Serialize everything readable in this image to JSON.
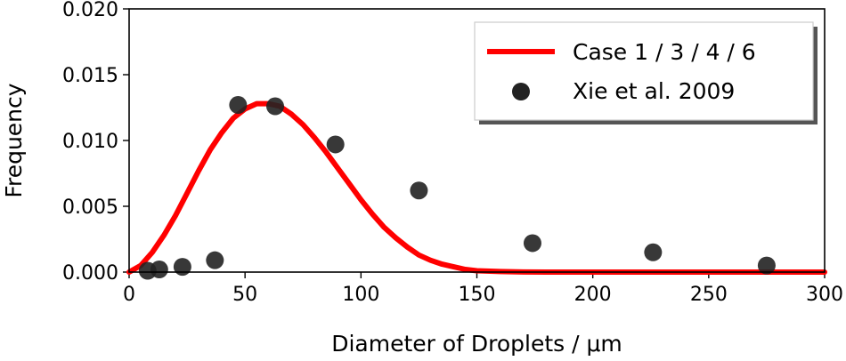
{
  "chart_data": {
    "type": "scatter",
    "title": "",
    "xlabel": "Diameter of Droplets / μm",
    "ylabel": "Frequency",
    "xlim": [
      0,
      300
    ],
    "ylim": [
      0,
      0.02
    ],
    "x_ticks": [
      "0",
      "50",
      "100",
      "150",
      "200",
      "250",
      "300"
    ],
    "y_ticks": [
      "0.000",
      "0.005",
      "0.010",
      "0.015",
      "0.020"
    ],
    "grid": false,
    "legend_position": "top-right",
    "series": [
      {
        "name": "Case 1 / 3 / 4 / 6",
        "kind": "line",
        "color": "#ff0000",
        "x": [
          0,
          5,
          10,
          15,
          20,
          25,
          30,
          35,
          40,
          45,
          50,
          55,
          60,
          65,
          70,
          75,
          80,
          85,
          90,
          95,
          100,
          105,
          110,
          115,
          120,
          125,
          130,
          135,
          140,
          145,
          150,
          160,
          170,
          180,
          200,
          250,
          300
        ],
        "y": [
          0.0,
          0.0005,
          0.0015,
          0.0028,
          0.0043,
          0.006,
          0.0077,
          0.0093,
          0.0106,
          0.0117,
          0.0124,
          0.0128,
          0.0128,
          0.0126,
          0.012,
          0.0112,
          0.0102,
          0.0091,
          0.0079,
          0.0067,
          0.0055,
          0.0044,
          0.0034,
          0.0026,
          0.0019,
          0.0013,
          0.0009,
          0.0006,
          0.0004,
          0.0002,
          0.0001,
          4e-05,
          1e-05,
          0.0,
          0.0,
          0.0,
          0.0
        ]
      },
      {
        "name": "Xie et al. 2009",
        "kind": "scatter",
        "color": "#222222",
        "x": [
          8,
          13,
          23,
          37,
          47,
          63,
          89,
          125,
          174,
          226,
          275
        ],
        "y": [
          0.0001,
          0.0002,
          0.0004,
          0.0009,
          0.0127,
          0.0126,
          0.0097,
          0.0062,
          0.0022,
          0.0015,
          0.0005
        ]
      }
    ]
  }
}
